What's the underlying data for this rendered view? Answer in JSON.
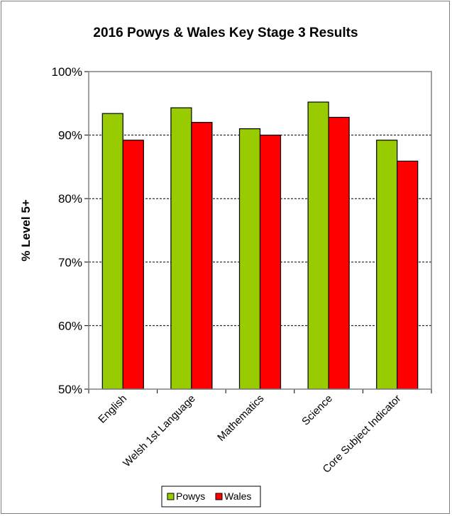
{
  "chart_data": {
    "type": "bar",
    "title": "2016 Powys & Wales Key Stage 3 Results",
    "xlabel": "",
    "ylabel": "% Level 5+",
    "ylim": [
      50,
      100
    ],
    "yticks": [
      50,
      60,
      70,
      80,
      90,
      100
    ],
    "ytick_labels": [
      "50%",
      "60%",
      "70%",
      "80%",
      "90%",
      "100%"
    ],
    "categories": [
      "English",
      "Welsh 1st Language",
      "Mathematics",
      "Science",
      "Core Subject Indicator"
    ],
    "series": [
      {
        "name": "Powys",
        "color": "#99cc00",
        "values": [
          93.4,
          94.3,
          91.0,
          95.2,
          89.2
        ]
      },
      {
        "name": "Wales",
        "color": "#ff0000",
        "values": [
          89.2,
          92.0,
          90.0,
          92.8,
          85.9
        ]
      }
    ],
    "grid": "horizontal dashed",
    "legend_position": "bottom"
  }
}
